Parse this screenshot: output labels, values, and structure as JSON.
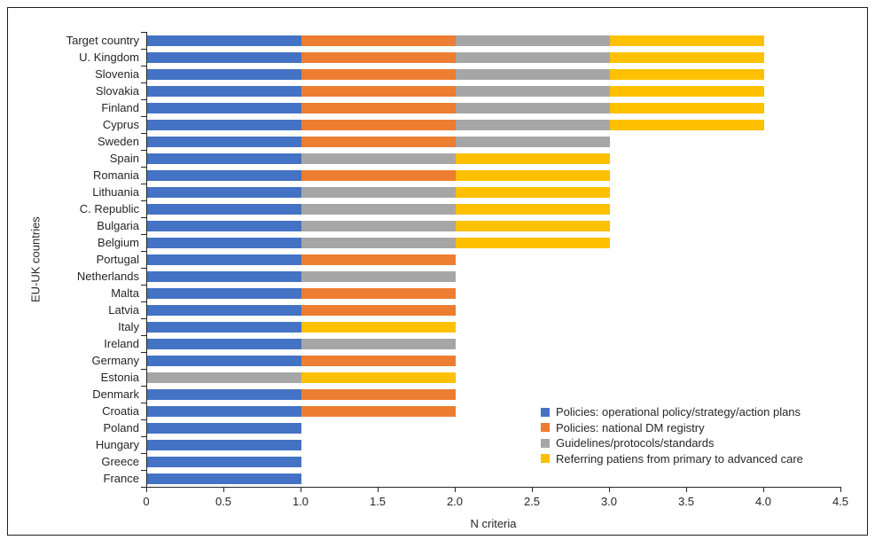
{
  "figure": {
    "background": "#ffffff",
    "frame_border_color": "#1f1f1f",
    "axis_color": "#262626",
    "text_color": "#262626"
  },
  "chart_data": {
    "type": "bar",
    "orientation": "horizontal",
    "stacked": true,
    "title": "",
    "xlabel": "N criteria",
    "ylabel": "EU-UK countries",
    "xlim": [
      0,
      4.5
    ],
    "xticks": [
      "0",
      "0.5",
      "1.0",
      "1.5",
      "2.0",
      "2.5",
      "3.0",
      "3.5",
      "4.0",
      "4.5"
    ],
    "grid": false,
    "legend_position": "inside-bottom-right",
    "categories": [
      "Target country",
      "U. Kingdom",
      "Slovenia",
      "Slovakia",
      "Finland",
      "Cyprus",
      "Sweden",
      "Spain",
      "Romania",
      "Lithuania",
      "C. Republic",
      "Bulgaria",
      "Belgium",
      "Portugal",
      "Netherlands",
      "Malta",
      "Latvia",
      "Italy",
      "Ireland",
      "Germany",
      "Estonia",
      "Denmark",
      "Croatia",
      "Poland",
      "Hungary",
      "Greece",
      "France"
    ],
    "series": [
      {
        "name": "Policies: operational policy/strategy/action plans",
        "color": "#4472C4",
        "values": [
          1,
          1,
          1,
          1,
          1,
          1,
          1,
          1,
          1,
          1,
          1,
          1,
          1,
          1,
          1,
          1,
          1,
          1,
          1,
          1,
          0,
          1,
          1,
          1,
          1,
          1,
          1
        ]
      },
      {
        "name": "Policies: national DM registry",
        "color": "#ED7D31",
        "values": [
          1,
          1,
          1,
          1,
          1,
          1,
          1,
          0,
          1,
          0,
          0,
          0,
          0,
          1,
          0,
          1,
          1,
          0,
          0,
          1,
          0,
          1,
          1,
          0,
          0,
          0,
          0
        ]
      },
      {
        "name": "Guidelines/protocols/standards",
        "color": "#A6A6A6",
        "values": [
          1,
          1,
          1,
          1,
          1,
          1,
          1,
          1,
          0,
          1,
          1,
          1,
          1,
          0,
          1,
          0,
          0,
          0,
          1,
          0,
          1,
          0,
          0,
          0,
          0,
          0,
          0
        ]
      },
      {
        "name": "Referring patiens from primary to advanced care",
        "color": "#FFC000",
        "values": [
          1,
          1,
          1,
          1,
          1,
          1,
          0,
          1,
          1,
          1,
          1,
          1,
          1,
          0,
          0,
          0,
          0,
          1,
          0,
          0,
          1,
          0,
          0,
          0,
          0,
          0,
          0
        ]
      }
    ]
  }
}
